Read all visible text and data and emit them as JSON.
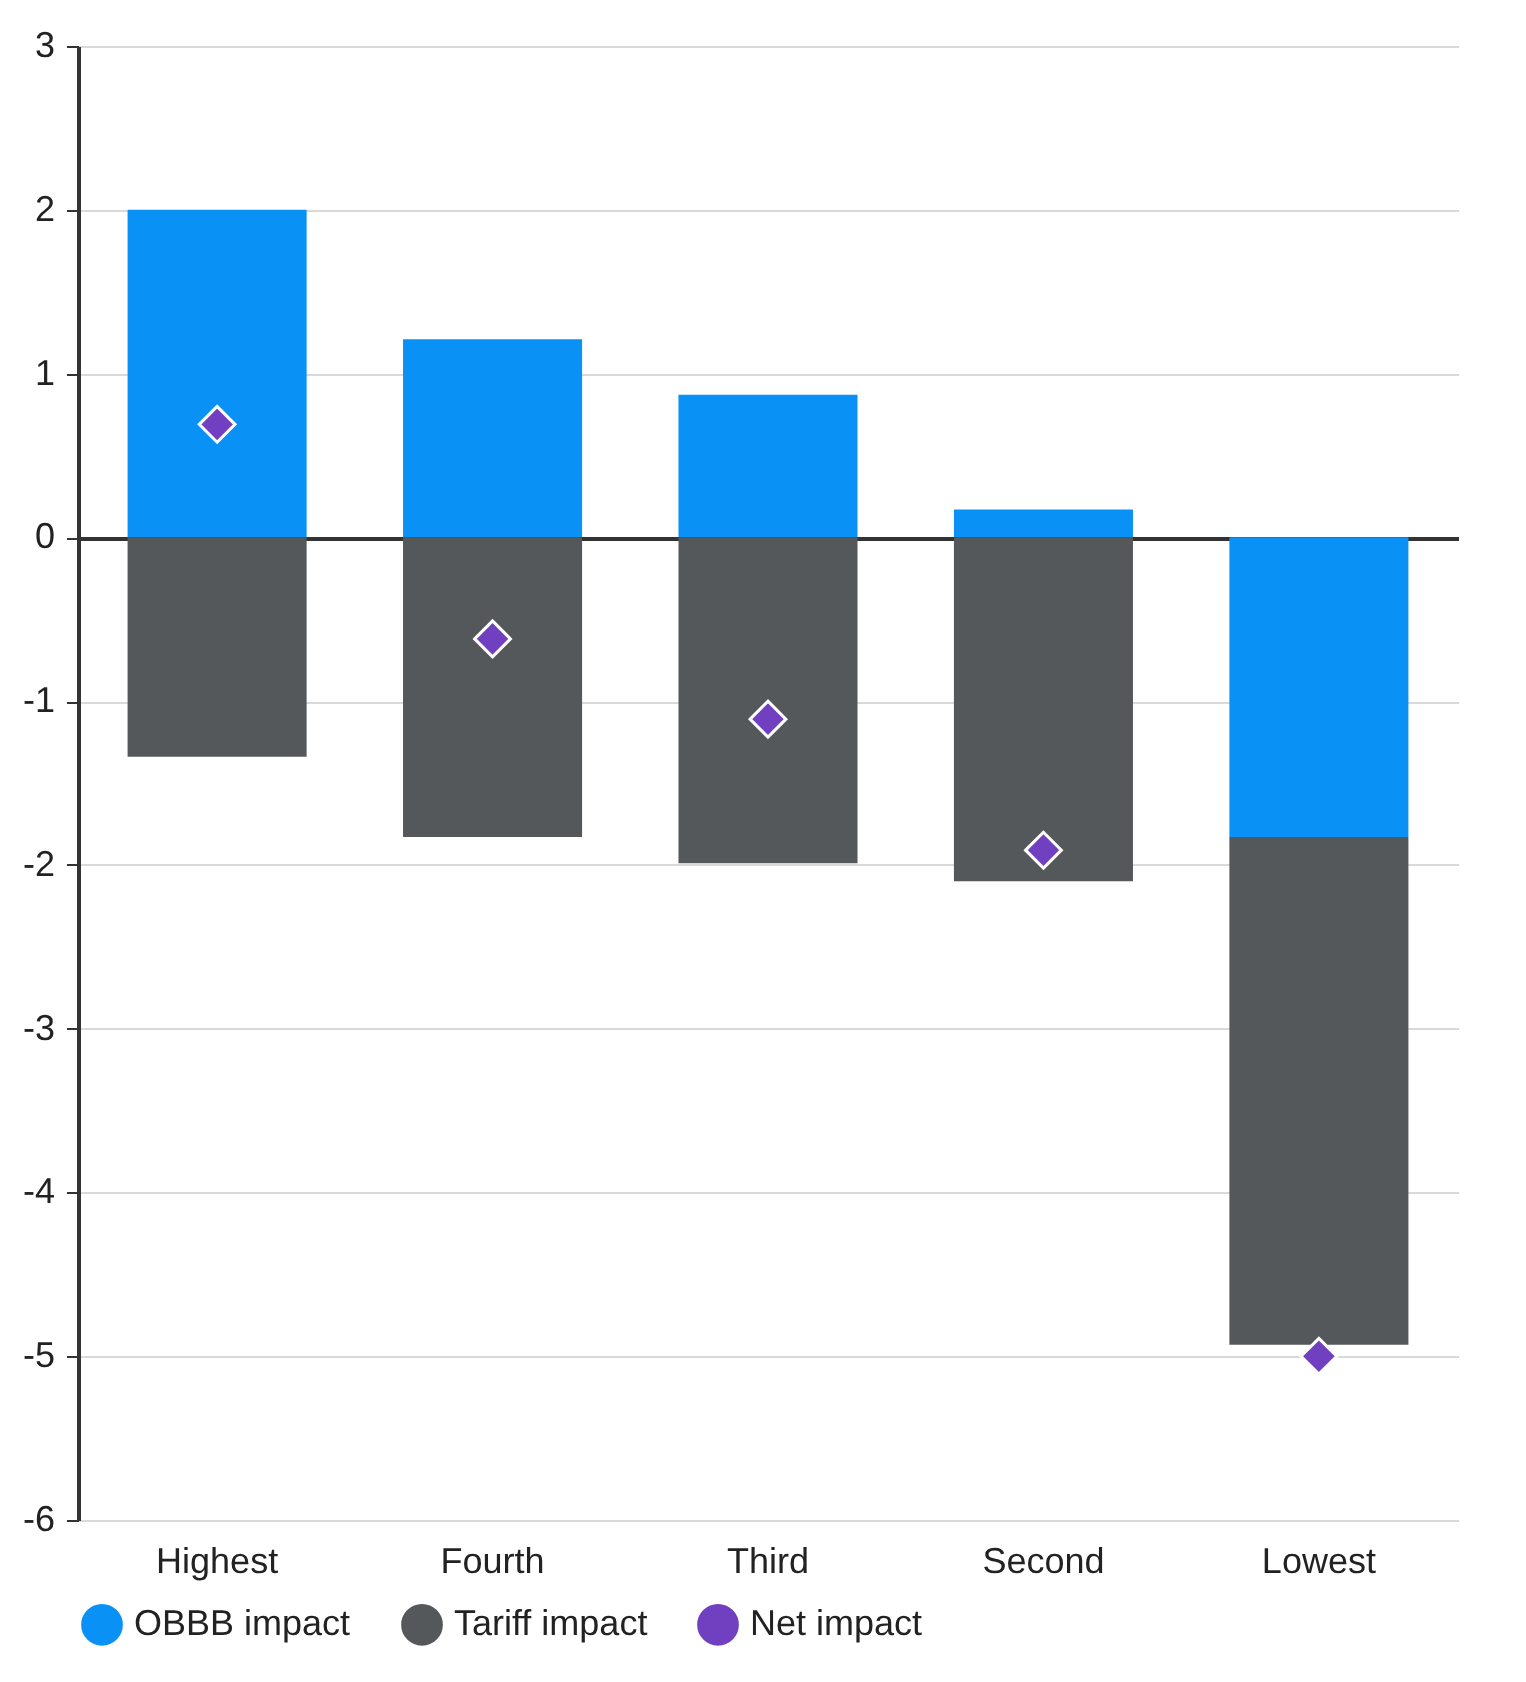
{
  "chart_data": {
    "type": "bar",
    "stacked": true,
    "categories": [
      "Highest",
      "Fourth",
      "Third",
      "Second",
      "Lowest"
    ],
    "series": [
      {
        "name": "OBBB impact",
        "color": "#0a91f5",
        "values": [
          2.0,
          1.21,
          0.87,
          0.17,
          -1.83
        ]
      },
      {
        "name": "Tariff impact",
        "color": "#55585b",
        "values": [
          -1.34,
          -1.83,
          -1.99,
          -2.1,
          -3.1
        ]
      },
      {
        "name": "Net impact",
        "type": "scatter",
        "color": "#7040c0",
        "values": [
          0.69,
          -0.62,
          -1.11,
          -1.91,
          -5.0
        ]
      }
    ],
    "ylim": [
      -6,
      3
    ],
    "yticks": [
      -6,
      -5,
      -4,
      -3,
      -2,
      -1,
      0,
      1,
      2,
      3
    ],
    "grid": "y",
    "legend": "bottom",
    "marker": "diamond"
  }
}
